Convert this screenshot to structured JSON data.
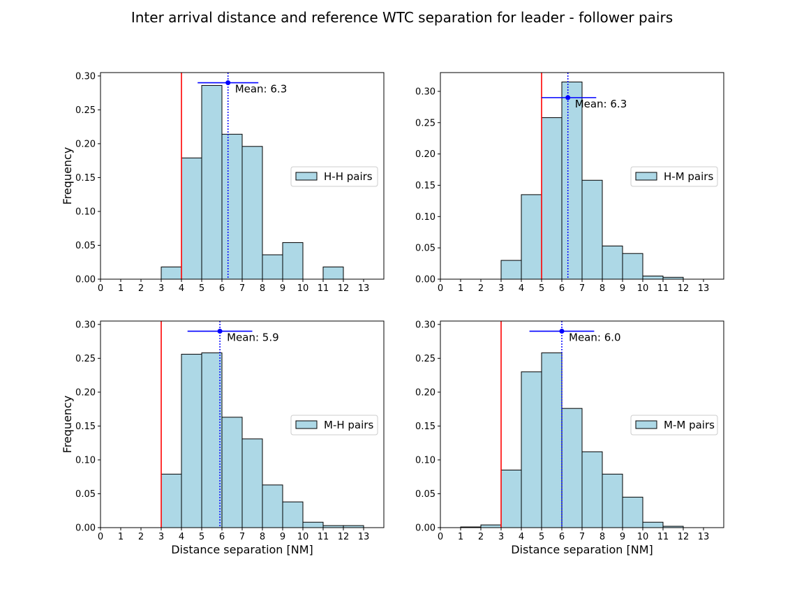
{
  "figure": {
    "title": "Inter arrival distance and reference WTC separation for leader - follower pairs"
  },
  "colors": {
    "bar_fill": "#add8e6",
    "bar_edge": "#000000",
    "reference_line": "#ff0000",
    "mean_marker": "#0000ff"
  },
  "chart_data": [
    {
      "type": "bar",
      "position": "top-left",
      "legend": "H-H pairs",
      "legend_location": "center-right",
      "xlabel": "",
      "ylabel": "Frequency",
      "xlim": [
        0,
        14
      ],
      "ylim": [
        0,
        0.305
      ],
      "xticks": [
        0,
        1,
        2,
        3,
        4,
        5,
        6,
        7,
        8,
        9,
        10,
        11,
        12,
        13
      ],
      "yticks": [
        0.0,
        0.05,
        0.1,
        0.15,
        0.2,
        0.25,
        0.3
      ],
      "ytick_labels": [
        "0.00",
        "0.05",
        "0.10",
        "0.15",
        "0.20",
        "0.25",
        "0.30"
      ],
      "bin_edges": [
        3,
        4,
        5,
        6,
        7,
        8,
        9,
        10,
        11,
        12,
        13
      ],
      "values": [
        0.018,
        0.179,
        0.286,
        0.214,
        0.196,
        0.036,
        0.054,
        0.0,
        0.018,
        0.0
      ],
      "reference_separation": 4,
      "mean": 6.3,
      "mean_label": "Mean: 6.3",
      "mean_marker_y": 0.29,
      "spread_range": [
        4.8,
        7.8
      ]
    },
    {
      "type": "bar",
      "position": "top-right",
      "legend": "H-M pairs",
      "legend_location": "center-right",
      "xlabel": "",
      "ylabel": "",
      "xlim": [
        0,
        14
      ],
      "ylim": [
        0,
        0.33
      ],
      "xticks": [
        0,
        1,
        2,
        3,
        4,
        5,
        6,
        7,
        8,
        9,
        10,
        11,
        12,
        13
      ],
      "yticks": [
        0.0,
        0.05,
        0.1,
        0.15,
        0.2,
        0.25,
        0.3
      ],
      "ytick_labels": [
        "0.00",
        "0.05",
        "0.10",
        "0.15",
        "0.20",
        "0.25",
        "0.30"
      ],
      "bin_edges": [
        3,
        4,
        5,
        6,
        7,
        8,
        9,
        10,
        11,
        12
      ],
      "values": [
        0.03,
        0.135,
        0.258,
        0.315,
        0.158,
        0.053,
        0.041,
        0.005,
        0.003
      ],
      "reference_separation": 5,
      "mean": 6.3,
      "mean_label": "Mean: 6.3",
      "mean_marker_y": 0.29,
      "spread_range": [
        5.0,
        7.7
      ]
    },
    {
      "type": "bar",
      "position": "bottom-left",
      "legend": "M-H pairs",
      "legend_location": "center-right",
      "xlabel": "Distance separation [NM]",
      "ylabel": "Frequency",
      "xlim": [
        0,
        14
      ],
      "ylim": [
        0,
        0.305
      ],
      "xticks": [
        0,
        1,
        2,
        3,
        4,
        5,
        6,
        7,
        8,
        9,
        10,
        11,
        12,
        13
      ],
      "yticks": [
        0.0,
        0.05,
        0.1,
        0.15,
        0.2,
        0.25,
        0.3
      ],
      "ytick_labels": [
        "0.00",
        "0.05",
        "0.10",
        "0.15",
        "0.20",
        "0.25",
        "0.30"
      ],
      "bin_edges": [
        3,
        4,
        5,
        6,
        7,
        8,
        9,
        10,
        11,
        12,
        13
      ],
      "values": [
        0.079,
        0.256,
        0.258,
        0.163,
        0.131,
        0.063,
        0.038,
        0.008,
        0.003,
        0.003
      ],
      "reference_separation": 3,
      "mean": 5.9,
      "mean_label": "Mean: 5.9",
      "mean_marker_y": 0.29,
      "spread_range": [
        4.3,
        7.5
      ]
    },
    {
      "type": "bar",
      "position": "bottom-right",
      "legend": "M-M pairs",
      "legend_location": "center-right",
      "xlabel": "Distance separation [NM]",
      "ylabel": "",
      "xlim": [
        0,
        14
      ],
      "ylim": [
        0,
        0.305
      ],
      "xticks": [
        0,
        1,
        2,
        3,
        4,
        5,
        6,
        7,
        8,
        9,
        10,
        11,
        12,
        13
      ],
      "yticks": [
        0.0,
        0.05,
        0.1,
        0.15,
        0.2,
        0.25,
        0.3
      ],
      "ytick_labels": [
        "0.00",
        "0.05",
        "0.10",
        "0.15",
        "0.20",
        "0.25",
        "0.30"
      ],
      "bin_edges": [
        1,
        2,
        3,
        4,
        5,
        6,
        7,
        8,
        9,
        10,
        11,
        12
      ],
      "values": [
        0.001,
        0.004,
        0.085,
        0.23,
        0.258,
        0.176,
        0.112,
        0.079,
        0.045,
        0.008,
        0.002
      ],
      "reference_separation": 3,
      "mean": 6.0,
      "mean_label": "Mean: 6.0",
      "mean_marker_y": 0.29,
      "spread_range": [
        4.4,
        7.6
      ]
    }
  ]
}
